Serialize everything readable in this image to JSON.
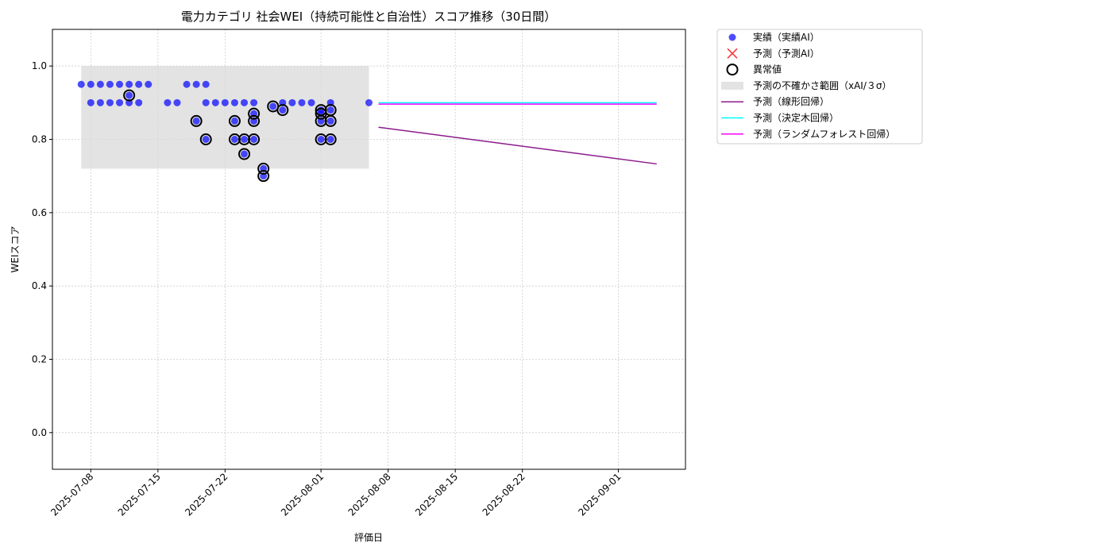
{
  "chart_data": {
    "type": "scatter",
    "title": "電力カテゴリ 社会WEI（持続可能性と自治性）スコア推移（30日間）",
    "xlabel": "評価日",
    "ylabel": "WEIスコア",
    "xlim": [
      "2025-07-04",
      "2025-09-08"
    ],
    "ylim": [
      -0.1,
      1.1
    ],
    "xticks": [
      "2025-07-08",
      "2025-07-15",
      "2025-07-22",
      "2025-08-01",
      "2025-08-08",
      "2025-08-15",
      "2025-08-22",
      "2025-09-01"
    ],
    "yticks": [
      {
        "value": 0,
        "label": "0.0"
      },
      {
        "value": 0.2,
        "label": "0.2"
      },
      {
        "value": 0.4,
        "label": "0.4"
      },
      {
        "value": 0.6,
        "label": "0.6"
      },
      {
        "value": 0.8,
        "label": "0.8"
      },
      {
        "value": 1,
        "label": "1.0"
      }
    ],
    "grid": true,
    "legend": "outside-right",
    "series": [
      {
        "name": "実績（実績AI）",
        "kind": "scatter",
        "color": "#0000ff",
        "x": [
          "2025-07-07",
          "2025-07-08",
          "2025-07-09",
          "2025-07-10",
          "2025-07-11",
          "2025-07-12",
          "2025-07-13",
          "2025-07-14",
          "2025-07-18",
          "2025-07-19",
          "2025-07-20",
          "2025-07-08",
          "2025-07-09",
          "2025-07-10",
          "2025-07-11",
          "2025-07-12",
          "2025-07-13",
          "2025-07-16",
          "2025-07-17",
          "2025-07-20",
          "2025-07-21",
          "2025-07-22",
          "2025-07-23",
          "2025-07-24",
          "2025-07-25",
          "2025-07-28",
          "2025-07-29",
          "2025-07-30",
          "2025-07-31",
          "2025-08-02",
          "2025-08-06",
          "2025-07-12",
          "2025-07-19",
          "2025-07-20",
          "2025-07-23",
          "2025-07-23",
          "2025-07-24",
          "2025-07-24",
          "2025-07-25",
          "2025-07-25",
          "2025-07-25",
          "2025-07-26",
          "2025-07-26",
          "2025-07-27",
          "2025-07-28",
          "2025-08-01",
          "2025-08-01",
          "2025-08-01",
          "2025-08-01",
          "2025-08-02",
          "2025-08-02",
          "2025-08-02"
        ],
        "values": [
          0.95,
          0.95,
          0.95,
          0.95,
          0.95,
          0.95,
          0.95,
          0.95,
          0.95,
          0.95,
          0.95,
          0.9,
          0.9,
          0.9,
          0.9,
          0.9,
          0.9,
          0.9,
          0.9,
          0.9,
          0.9,
          0.9,
          0.9,
          0.9,
          0.9,
          0.9,
          0.9,
          0.9,
          0.9,
          0.9,
          0.9,
          0.92,
          0.85,
          0.8,
          0.85,
          0.8,
          0.8,
          0.76,
          0.85,
          0.87,
          0.8,
          0.72,
          0.7,
          0.89,
          0.88,
          0.85,
          0.8,
          0.87,
          0.88,
          0.85,
          0.8,
          0.88
        ]
      },
      {
        "name": "予測（予測AI）",
        "kind": "cross",
        "color": "#ff3333",
        "x": [],
        "values": []
      },
      {
        "name": "異常値",
        "kind": "ring",
        "color": "#000000",
        "x": [
          "2025-07-12",
          "2025-07-19",
          "2025-07-20",
          "2025-07-23",
          "2025-07-23",
          "2025-07-24",
          "2025-07-24",
          "2025-07-25",
          "2025-07-25",
          "2025-07-25",
          "2025-07-26",
          "2025-07-26",
          "2025-07-27",
          "2025-07-28",
          "2025-08-01",
          "2025-08-01",
          "2025-08-01",
          "2025-08-01",
          "2025-08-02",
          "2025-08-02",
          "2025-08-02"
        ],
        "values": [
          0.92,
          0.85,
          0.8,
          0.85,
          0.8,
          0.8,
          0.76,
          0.85,
          0.87,
          0.8,
          0.72,
          0.7,
          0.89,
          0.88,
          0.85,
          0.8,
          0.87,
          0.88,
          0.85,
          0.8,
          0.88
        ]
      },
      {
        "name": "予測の不確かさ範囲（xAI/３σ）",
        "kind": "band",
        "color": "#d9d9d9",
        "x": [
          "2025-07-07",
          "2025-08-06"
        ],
        "lower": 0.72,
        "upper": 1.0
      },
      {
        "name": "予測（線形回帰）",
        "kind": "line",
        "color": "#8b1a8b",
        "x": [
          "2025-08-07",
          "2025-09-05"
        ],
        "values": [
          0.833,
          0.733
        ]
      },
      {
        "name": "予測（決定木回帰）",
        "kind": "line",
        "color": "#00ffff",
        "x": [
          "2025-08-07",
          "2025-09-05"
        ],
        "values": [
          0.9,
          0.9
        ]
      },
      {
        "name": "予測（ランダムフォレスト回帰）",
        "kind": "line",
        "color": "#ff00ff",
        "x": [
          "2025-08-07",
          "2025-09-05"
        ],
        "values": [
          0.896,
          0.896
        ]
      }
    ]
  }
}
